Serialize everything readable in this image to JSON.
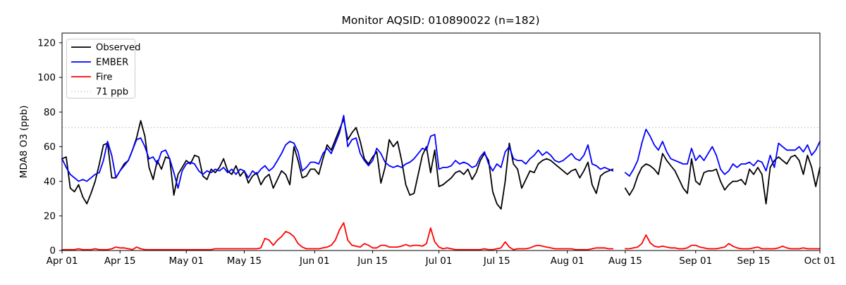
{
  "header": {
    "title": "Monitor AQSID: 010890022 (n=182)"
  },
  "axes": {
    "ylabel": "MDA8 O3 (ppb)",
    "y_ticks": [
      0,
      20,
      40,
      60,
      80,
      100,
      120
    ],
    "ylim": [
      0,
      125.6
    ],
    "x_tick_labels": [
      "Apr 01",
      "Apr 15",
      "May 01",
      "May 15",
      "Jun 01",
      "Jun 15",
      "Jul 01",
      "Jul 15",
      "Aug 01",
      "Aug 15",
      "Sep 01",
      "Sep 15",
      "Oct 01"
    ],
    "x_tick_days": [
      0,
      14,
      30,
      44,
      61,
      75,
      91,
      105,
      122,
      136,
      153,
      167,
      183
    ]
  },
  "chart_data": {
    "type": "line",
    "title": "Monitor AQSID: 010890022 (n=182)",
    "ylabel": "MDA8 O3 (ppb)",
    "start_date": "Apr 01",
    "end_date": "Oct 01",
    "n_days": 184,
    "note_missing_days": [
      "Aug 13",
      "Aug 14"
    ],
    "legend_position": "upper left",
    "threshold": {
      "label": "71 ppb",
      "value": 71,
      "color": "#c8c8c8",
      "style": "dotted"
    },
    "series": [
      {
        "name": "Observed",
        "color": "#000000",
        "values": [
          53,
          54,
          36,
          34,
          38,
          31,
          27,
          33,
          40,
          50,
          61,
          62,
          42,
          42,
          46,
          50,
          52,
          58,
          65,
          75,
          66,
          48,
          41,
          52,
          47,
          54,
          53,
          32,
          44,
          48,
          52,
          50,
          55,
          54,
          43,
          41,
          47,
          45,
          48,
          53,
          46,
          44,
          49,
          43,
          46,
          39,
          43,
          45,
          38,
          42,
          44,
          36,
          41,
          46,
          44,
          38,
          60,
          52,
          42,
          43,
          47,
          47,
          44,
          53,
          61,
          58,
          64,
          70,
          76,
          64,
          68,
          71,
          63,
          53,
          50,
          54,
          57,
          39,
          48,
          64,
          60,
          63,
          52,
          38,
          32,
          33,
          44,
          55,
          60,
          45,
          58,
          37,
          38,
          40,
          42,
          45,
          46,
          44,
          47,
          41,
          45,
          52,
          56,
          52,
          34,
          27,
          24,
          40,
          62,
          50,
          47,
          36,
          41,
          46,
          45,
          50,
          52,
          53,
          52,
          50,
          48,
          46,
          44,
          46,
          47,
          42,
          46,
          51,
          38,
          33,
          43,
          45,
          46,
          47,
          null,
          null,
          36,
          32,
          36,
          43,
          48,
          50,
          49,
          47,
          44,
          56,
          52,
          49,
          46,
          41,
          36,
          33,
          53,
          40,
          38,
          45,
          46,
          46,
          47,
          40,
          35,
          38,
          40,
          40,
          41,
          38,
          47,
          44,
          48,
          44,
          27,
          48,
          52,
          54,
          52,
          50,
          54,
          55,
          52,
          44,
          55,
          48,
          37,
          48
        ]
      },
      {
        "name": "EMBER",
        "color": "#0000ff",
        "values": [
          53,
          48,
          44,
          42,
          40,
          41,
          40,
          42,
          44,
          45,
          52,
          63,
          55,
          42,
          46,
          49,
          52,
          58,
          64,
          65,
          60,
          53,
          54,
          50,
          57,
          58,
          53,
          45,
          36,
          46,
          50,
          51,
          50,
          46,
          44,
          46,
          45,
          47,
          46,
          48,
          45,
          47,
          44,
          47,
          46,
          42,
          46,
          44,
          47,
          49,
          46,
          48,
          52,
          56,
          61,
          63,
          62,
          57,
          46,
          48,
          51,
          51,
          50,
          56,
          59,
          56,
          62,
          68,
          78,
          60,
          64,
          65,
          56,
          52,
          49,
          52,
          59,
          56,
          51,
          49,
          48,
          49,
          48,
          50,
          51,
          53,
          56,
          59,
          58,
          66,
          67,
          47,
          48,
          48,
          49,
          52,
          50,
          51,
          50,
          48,
          49,
          54,
          57,
          50,
          46,
          50,
          48,
          57,
          60,
          53,
          52,
          52,
          50,
          53,
          55,
          58,
          55,
          57,
          55,
          52,
          51,
          52,
          54,
          56,
          53,
          52,
          55,
          61,
          50,
          49,
          47,
          48,
          47,
          46,
          null,
          null,
          45,
          43,
          47,
          52,
          62,
          70,
          66,
          61,
          58,
          63,
          57,
          53,
          52,
          51,
          50,
          50,
          59,
          52,
          55,
          52,
          56,
          60,
          55,
          47,
          44,
          46,
          50,
          48,
          50,
          50,
          51,
          49,
          52,
          51,
          46,
          55,
          48,
          62,
          60,
          58,
          58,
          58,
          60,
          57,
          61,
          55,
          58,
          63
        ]
      },
      {
        "name": "Fire",
        "color": "#ff0000",
        "values": [
          0.5,
          0.5,
          0.5,
          0.5,
          1,
          0.5,
          0.5,
          0.5,
          1,
          0.5,
          0.5,
          0.5,
          1,
          2,
          1.5,
          1.5,
          1,
          0.5,
          2,
          1,
          0.5,
          0.5,
          0.5,
          0.5,
          0.5,
          0.5,
          0.5,
          0.5,
          0.5,
          0.5,
          0.5,
          0.5,
          0.5,
          0.5,
          0.5,
          0.5,
          0.5,
          1,
          1,
          1,
          1,
          1,
          1,
          1,
          1,
          1,
          1,
          1,
          1.5,
          7,
          6,
          3,
          6,
          8,
          11,
          10,
          8,
          4,
          2,
          1,
          1,
          1,
          1,
          1.5,
          2,
          3,
          6,
          12,
          16,
          6,
          3,
          2.5,
          2,
          4,
          3,
          1.5,
          1.5,
          3,
          3,
          2,
          2,
          2,
          2.5,
          3.5,
          2.5,
          3,
          3,
          2.5,
          4,
          13,
          5,
          2,
          1,
          1.5,
          1,
          0.5,
          0.5,
          0.5,
          0.5,
          0.5,
          0.5,
          0.5,
          1,
          0.5,
          0.5,
          1,
          1.5,
          5,
          2,
          0.5,
          1,
          1,
          1,
          1.5,
          2.5,
          3,
          2.5,
          2,
          1.5,
          1,
          1,
          1,
          1,
          1,
          0.5,
          0.5,
          0.5,
          0.5,
          1,
          1.5,
          1.5,
          1.5,
          1,
          1,
          null,
          null,
          1,
          1,
          1.5,
          2,
          4,
          9,
          4.5,
          2.5,
          2,
          2.5,
          2,
          1.5,
          1.5,
          1,
          1,
          1.5,
          3,
          3,
          2,
          1.5,
          1,
          1,
          1,
          1.5,
          2,
          4,
          2.5,
          1.5,
          1,
          1,
          1,
          1.5,
          2,
          1,
          1,
          1,
          1,
          1.5,
          2.5,
          1.5,
          1,
          1,
          1,
          1.5,
          1,
          1,
          1,
          1
        ]
      }
    ]
  }
}
